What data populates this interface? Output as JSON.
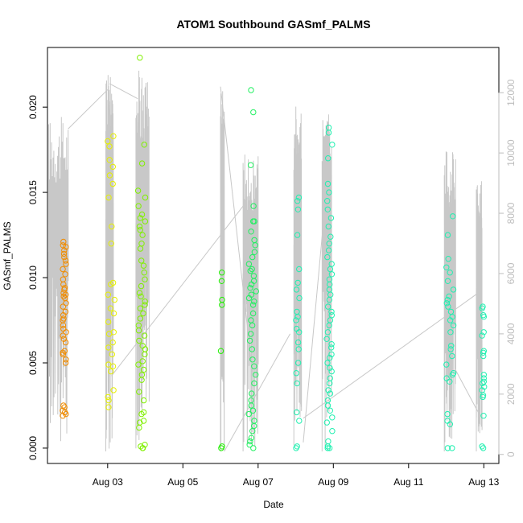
{
  "chart_data": {
    "type": "scatter",
    "title": "ATOM1 Southbound GASmf_PALMS",
    "xlabel": "Date",
    "ylabel": "GASmf_PALMS",
    "x_tick_labels": [
      "Aug 03",
      "Aug 05",
      "Aug 07",
      "Aug 09",
      "Aug 11",
      "Aug 13"
    ],
    "x_ticks_day": [
      3,
      5,
      7,
      9,
      11,
      13
    ],
    "xlim_day": [
      1.4,
      13.4
    ],
    "ylim": [
      -0.0009,
      0.0235
    ],
    "y_ticks": [
      0.0,
      0.005,
      0.01,
      0.015,
      0.02
    ],
    "y_tick_labels": [
      "0.000",
      "0.005",
      "0.010",
      "0.015",
      "0.020"
    ],
    "y2_ticks": [
      0,
      2000,
      4000,
      6000,
      8000,
      10000,
      12000
    ],
    "y2_tick_labels": [
      "0",
      "2000",
      "4000",
      "6000",
      "8000",
      "10000",
      "12000"
    ],
    "y2lim": [
      -300,
      13500
    ],
    "colors": {
      "altitude_line": "#c8c8c8",
      "right_axis": "#bdbdbd",
      "flight_colors": [
        "#f08c00",
        "#e6f000",
        "#80f000",
        "#20f000",
        "#20f060",
        "#20f0b0"
      ]
    },
    "flights": [
      {
        "day": 1.85,
        "width": 0.1,
        "values": [
          0.0121,
          0.0119,
          0.0118,
          0.0116,
          0.0114,
          0.0112,
          0.011,
          0.0108,
          0.0105,
          0.0102,
          0.0099,
          0.0096,
          0.0094,
          0.0093,
          0.0091,
          0.009,
          0.0089,
          0.0088,
          0.0085,
          0.0083,
          0.008,
          0.0078,
          0.0076,
          0.0075,
          0.0072,
          0.007,
          0.0068,
          0.0066,
          0.0064,
          0.0062,
          0.0057,
          0.0056,
          0.0055,
          0.0052,
          0.005,
          0.0025,
          0.0024,
          0.0022,
          0.0021,
          0.002,
          0.0019
        ]
      },
      {
        "day": 3.1,
        "width": 0.2,
        "values": [
          0.0183,
          0.018,
          0.0177,
          0.0169,
          0.0165,
          0.016,
          0.0155,
          0.0147,
          0.013,
          0.012,
          0.0097,
          0.0096,
          0.009,
          0.0087,
          0.0082,
          0.0079,
          0.0074,
          0.0068,
          0.0067,
          0.0062,
          0.0059,
          0.0055,
          0.0049,
          0.0048,
          0.0045,
          0.0034,
          0.003,
          0.0028,
          0.0024
        ]
      },
      {
        "day": 3.9,
        "width": 0.2,
        "values": [
          0.0229,
          0.0178,
          0.0167,
          0.0151,
          0.0147,
          0.0142,
          0.0137,
          0.0135,
          0.0133,
          0.013,
          0.0128,
          0.0125,
          0.012,
          0.0117,
          0.011,
          0.0107,
          0.0103,
          0.0099,
          0.0095,
          0.0091,
          0.0089,
          0.0086,
          0.0084,
          0.0082,
          0.0079,
          0.0076,
          0.0072,
          0.0069,
          0.0066,
          0.0063,
          0.006,
          0.0058,
          0.0055,
          0.0051,
          0.0049,
          0.0046,
          0.0043,
          0.004,
          0.0033,
          0.0028,
          0.0021,
          0.002,
          0.0016,
          0.0015,
          0.0012,
          0.0002,
          0.0001,
          0.0,
          0.0
        ]
      },
      {
        "day": 6.02,
        "width": 0.05,
        "values": [
          0.0103,
          0.0098,
          0.0087,
          0.0084,
          0.0057,
          0.0001,
          0.0
        ]
      },
      {
        "day": 6.85,
        "width": 0.2,
        "values": [
          0.021,
          0.0197,
          0.0166,
          0.0142,
          0.0133,
          0.0133,
          0.0127,
          0.0122,
          0.0119,
          0.0115,
          0.0112,
          0.0108,
          0.0105,
          0.0104,
          0.0101,
          0.0098,
          0.0096,
          0.0094,
          0.0092,
          0.009,
          0.0088,
          0.0086,
          0.0084,
          0.0079,
          0.0075,
          0.0072,
          0.0067,
          0.0063,
          0.0058,
          0.0052,
          0.0048,
          0.0043,
          0.0038,
          0.0032,
          0.0028,
          0.0025,
          0.0022,
          0.002,
          0.0016,
          0.0013,
          0.001,
          0.0006,
          0.0004,
          0.0002,
          0.0
        ]
      },
      {
        "day": 8.05,
        "width": 0.1,
        "values": [
          0.0147,
          0.0145,
          0.014,
          0.0125,
          0.0105,
          0.0097,
          0.0093,
          0.0088,
          0.008,
          0.0077,
          0.0075,
          0.007,
          0.0068,
          0.0062,
          0.0058,
          0.005,
          0.0044,
          0.0038,
          0.0021,
          0.0016,
          0.0001,
          0.0
        ]
      },
      {
        "day": 8.9,
        "width": 0.15,
        "values": [
          0.0188,
          0.0185,
          0.0178,
          0.017,
          0.0155,
          0.015,
          0.0145,
          0.014,
          0.0135,
          0.013,
          0.0124,
          0.012,
          0.0116,
          0.0112,
          0.0108,
          0.0105,
          0.0102,
          0.0099,
          0.0096,
          0.0093,
          0.009,
          0.0087,
          0.0083,
          0.008,
          0.0078,
          0.0075,
          0.0072,
          0.0068,
          0.0064,
          0.0061,
          0.0059,
          0.0055,
          0.0053,
          0.005,
          0.0047,
          0.0045,
          0.0041,
          0.0038,
          0.0034,
          0.0032,
          0.0028,
          0.0025,
          0.0022,
          0.0018,
          0.0015,
          0.001,
          0.0004,
          0.0001,
          0.0,
          0.0
        ]
      },
      {
        "day": 12.1,
        "width": 0.2,
        "values": [
          0.0136,
          0.0125,
          0.0111,
          0.0106,
          0.0103,
          0.0098,
          0.0093,
          0.0089,
          0.0087,
          0.0085,
          0.0083,
          0.008,
          0.0077,
          0.0075,
          0.0072,
          0.0068,
          0.006,
          0.0058,
          0.0054,
          0.0049,
          0.0044,
          0.0043,
          0.0041,
          0.0039,
          0.002,
          0.0016,
          0.0014,
          0.0,
          0.0
        ]
      },
      {
        "day": 12.98,
        "width": 0.06,
        "values": [
          0.0083,
          0.0082,
          0.0078,
          0.0077,
          0.0068,
          0.0066,
          0.0057,
          0.0056,
          0.0054,
          0.0043,
          0.0041,
          0.0039,
          0.0038,
          0.0036,
          0.0034,
          0.0031,
          0.003,
          0.0019,
          0.0001,
          0.0
        ]
      }
    ],
    "altitude_spikes": [
      {
        "day_start": 1.43,
        "day_end": 1.95,
        "max": 11200,
        "min": 200
      },
      {
        "day_start": 2.95,
        "day_end": 3.15,
        "max": 13000,
        "min": 100
      },
      {
        "day_start": 3.75,
        "day_end": 4.1,
        "max": 12800,
        "min": 200
      },
      {
        "day_start": 6.0,
        "day_end": 6.1,
        "max": 12200,
        "min": 100
      },
      {
        "day_start": 6.6,
        "day_end": 7.0,
        "max": 10000,
        "min": 100
      },
      {
        "day_start": 7.95,
        "day_end": 8.15,
        "max": 11600,
        "min": 300
      },
      {
        "day_start": 8.7,
        "day_end": 8.95,
        "max": 11300,
        "min": 100
      },
      {
        "day_start": 11.95,
        "day_end": 12.25,
        "max": 10200,
        "min": 100
      },
      {
        "day_start": 12.8,
        "day_end": 12.95,
        "max": 9200,
        "min": 100
      }
    ],
    "altitude_links": [
      {
        "x": [
          1.95,
          3.0
        ],
        "y": [
          10800,
          12100
        ]
      },
      {
        "x": [
          3.05,
          3.8
        ],
        "y": [
          12300,
          11800
        ]
      },
      {
        "x": [
          3.1,
          6.7
        ],
        "y": [
          2600,
          8400
        ]
      },
      {
        "x": [
          6.0,
          6.85
        ],
        "y": [
          12200,
          2700
        ]
      },
      {
        "x": [
          6.1,
          7.85
        ],
        "y": [
          100,
          4000
        ]
      },
      {
        "x": [
          8.2,
          8.75
        ],
        "y": [
          400,
          7900
        ]
      },
      {
        "x": [
          8.2,
          12.9
        ],
        "y": [
          1200,
          5400
        ]
      },
      {
        "x": [
          12.25,
          12.85
        ],
        "y": [
          2800,
          1400
        ]
      }
    ]
  }
}
